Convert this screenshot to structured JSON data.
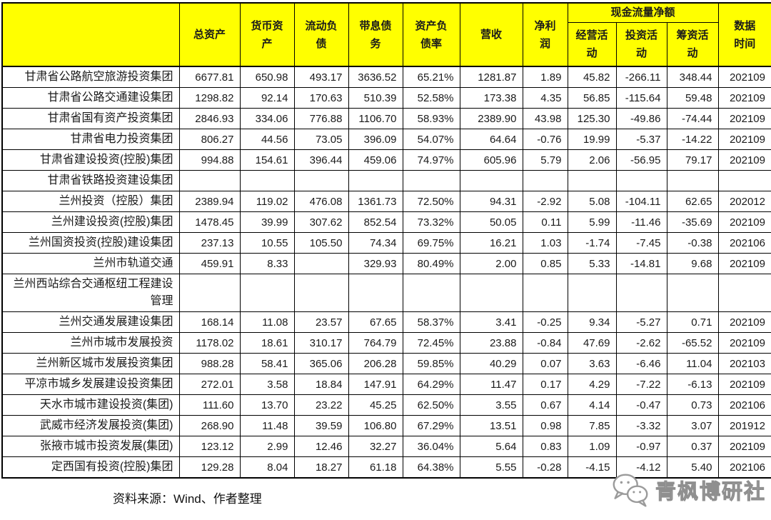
{
  "table": {
    "headers": {
      "company": "",
      "total_assets": "总资产",
      "monetary_assets": "货币资\n产",
      "current_liabilities": "流动负\n债",
      "interest_bearing_debt": "带息债\n务",
      "debt_ratio": "资产负\n债率",
      "revenue": "营收",
      "net_profit": "净利\n润",
      "net_cash_flow_group": "现金流量净额",
      "operating": "经营活\n动",
      "investing": "投资活\n动",
      "financing": "筹资活\n动",
      "data_time": "数据\n时间"
    },
    "rows": [
      {
        "name": "甘肃省公路航空旅游投资集团",
        "values": [
          "6677.81",
          "650.98",
          "493.17",
          "3636.52",
          "65.21%",
          "1281.87",
          "1.89",
          "45.82",
          "-266.11",
          "348.44",
          "202109"
        ]
      },
      {
        "name": "甘肃省公路交通建设集团",
        "values": [
          "1298.82",
          "92.14",
          "170.63",
          "510.39",
          "52.58%",
          "173.38",
          "4.35",
          "56.85",
          "-115.64",
          "59.48",
          "202109"
        ]
      },
      {
        "name": "甘肃省国有资产投资集团",
        "values": [
          "2846.93",
          "334.06",
          "776.88",
          "1106.70",
          "58.93%",
          "2389.90",
          "43.98",
          "125.30",
          "-49.86",
          "-74.44",
          "202109"
        ]
      },
      {
        "name": "甘肃省电力投资集团",
        "values": [
          "806.27",
          "44.56",
          "73.05",
          "396.09",
          "54.07%",
          "64.64",
          "-0.76",
          "19.99",
          "-5.37",
          "-14.22",
          "202109"
        ]
      },
      {
        "name": "甘肃省建设投资(控股)集团",
        "values": [
          "994.88",
          "154.61",
          "396.44",
          "459.06",
          "74.97%",
          "605.96",
          "5.79",
          "2.06",
          "-56.95",
          "79.17",
          "202109"
        ]
      },
      {
        "name": "甘肃省铁路投资建设集团",
        "values": [
          "",
          "",
          "",
          "",
          "",
          "",
          "",
          "",
          "",
          "",
          ""
        ]
      },
      {
        "name": "兰州投资（控股）集团",
        "values": [
          "2389.94",
          "119.02",
          "476.08",
          "1361.73",
          "72.50%",
          "94.31",
          "-2.92",
          "5.08",
          "-104.11",
          "62.65",
          "202012"
        ]
      },
      {
        "name": "兰州建设投资(控股)集团",
        "values": [
          "1478.45",
          "39.99",
          "307.62",
          "852.54",
          "73.32%",
          "50.05",
          "0.11",
          "5.99",
          "-11.46",
          "-35.69",
          "202109"
        ]
      },
      {
        "name": "兰州国资投资(控股)建设集团",
        "values": [
          "237.13",
          "10.55",
          "105.50",
          "74.34",
          "69.75%",
          "16.21",
          "1.03",
          "-1.74",
          "-7.45",
          "-0.38",
          "202106"
        ]
      },
      {
        "name": "兰州市轨道交通",
        "values": [
          "459.91",
          "8.33",
          "",
          "329.93",
          "80.49%",
          "2.00",
          "0.85",
          "5.33",
          "-14.81",
          "9.68",
          "202109"
        ]
      },
      {
        "name": "兰州西站综合交通枢纽工程建设管理",
        "values": [
          "",
          "",
          "",
          "",
          "",
          "",
          "",
          "",
          "",
          "",
          ""
        ]
      },
      {
        "name": "兰州交通发展建设集团",
        "values": [
          "168.14",
          "11.08",
          "23.57",
          "67.65",
          "58.37%",
          "3.41",
          "-0.25",
          "9.34",
          "-5.27",
          "0.71",
          "202109"
        ]
      },
      {
        "name": "兰州市城市发展投资",
        "values": [
          "1178.02",
          "18.61",
          "310.17",
          "764.79",
          "72.45%",
          "23.88",
          "-0.84",
          "47.69",
          "-2.62",
          "-65.52",
          "202109"
        ]
      },
      {
        "name": "兰州新区城市发展投资集团",
        "values": [
          "988.28",
          "58.41",
          "365.06",
          "206.28",
          "59.85%",
          "40.29",
          "0.07",
          "3.63",
          "-6.46",
          "11.04",
          "202103"
        ]
      },
      {
        "name": "平凉市城乡发展建设投资集团",
        "values": [
          "272.01",
          "3.58",
          "18.84",
          "147.91",
          "64.29%",
          "11.47",
          "0.17",
          "4.29",
          "-7.22",
          "-6.13",
          "202109"
        ]
      },
      {
        "name": "天水市城市建设投资(集团)",
        "values": [
          "111.60",
          "13.70",
          "23.22",
          "45.25",
          "62.50%",
          "3.55",
          "0.67",
          "4.14",
          "-0.47",
          "0.73",
          "202106"
        ]
      },
      {
        "name": "武威市经济发展投资(集团)",
        "values": [
          "268.90",
          "11.48",
          "39.59",
          "106.80",
          "67.29%",
          "13.51",
          "0.98",
          "7.85",
          "-3.32",
          "3.07",
          "201912"
        ]
      },
      {
        "name": "张掖市城市投资发展(集团)",
        "values": [
          "123.12",
          "2.99",
          "12.46",
          "32.27",
          "36.04%",
          "5.64",
          "0.83",
          "1.09",
          "-0.97",
          "0.37",
          "202109"
        ]
      },
      {
        "name": "定西国有投资(控股)集团",
        "values": [
          "129.28",
          "8.04",
          "18.27",
          "61.18",
          "64.38%",
          "5.55",
          "-0.28",
          "-4.15",
          "-4.12",
          "5.40",
          "202106"
        ]
      }
    ]
  },
  "footer": {
    "source": "资料来源：Wind、作者整理"
  },
  "logo": {
    "text": "青枫博研社",
    "icon": "wechat-icon"
  },
  "colors": {
    "header_bg": "#FFFF00",
    "border": "#000000",
    "logo_gray": "#9b9b9b"
  }
}
